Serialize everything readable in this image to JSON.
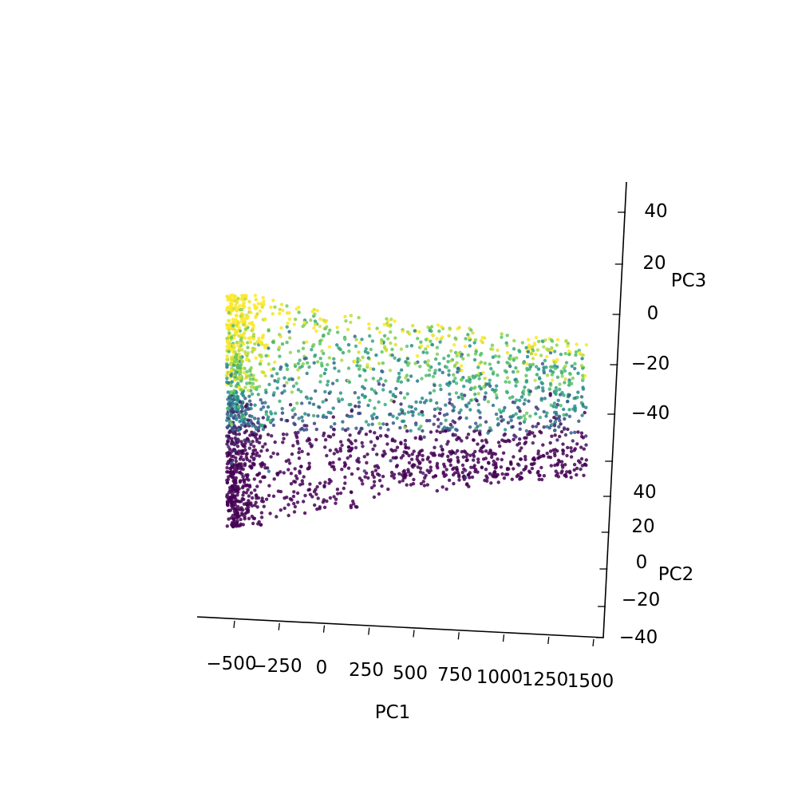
{
  "chart_data": {
    "type": "scatter",
    "projection": "3d",
    "title": "",
    "xlabel": "PC1",
    "ylabel": "PC2",
    "zlabel": "PC3",
    "x_ticks": [
      "−500",
      "−250",
      "0",
      "250",
      "500",
      "750",
      "1000",
      "1250",
      "1500"
    ],
    "y_ticks": [
      "−40",
      "−20",
      "0",
      "20",
      "40"
    ],
    "z_ticks": [
      "−40",
      "−20",
      "0",
      "20",
      "40"
    ],
    "xlim": [
      -600,
      1500
    ],
    "ylim": [
      -45,
      50
    ],
    "zlim": [
      -60,
      50
    ],
    "grid": false,
    "colormap": "viridis",
    "point_color_range": [
      "#440154",
      "#3b528b",
      "#21918c",
      "#5ec962",
      "#fde725"
    ],
    "approx_point_count": 6000,
    "distribution": {
      "pc1_range": [
        -550,
        1450
      ],
      "pc3_range": [
        -55,
        10
      ],
      "note": "dense vertical band near PC1 ≈ -500; high-color (yellow) points concentrated at upper-left, low-color (purple) points at bottom"
    }
  }
}
